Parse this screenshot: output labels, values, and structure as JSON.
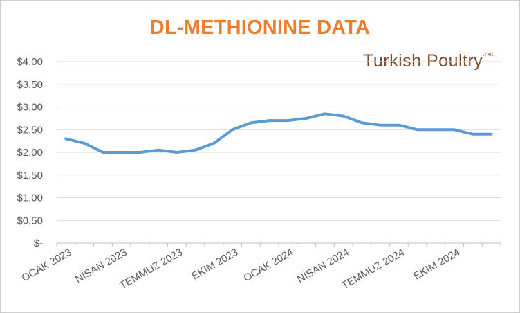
{
  "chart_data": {
    "type": "line",
    "title": "DL-METHIONINE DATA",
    "xlabel": "",
    "ylabel": "",
    "x_tick_labels": [
      "OCAK 2023",
      "NİSAN 2023",
      "TEMMUZ 2023",
      "EKİM 2023",
      "OCAK 2024",
      "NİSAN 2024",
      "TEMMUZ 2024",
      "EKİM 2024"
    ],
    "y_tick_labels": [
      "$-",
      "$0,50",
      "$1,00",
      "$1,50",
      "$2,00",
      "$2,50",
      "$3,00",
      "$3,50",
      "$4,00"
    ],
    "ylim": [
      0,
      4
    ],
    "grid": true,
    "x": [
      "2023-01",
      "2023-02",
      "2023-03",
      "2023-04",
      "2023-05",
      "2023-06",
      "2023-07",
      "2023-08",
      "2023-09",
      "2023-10",
      "2023-11",
      "2023-12",
      "2024-01",
      "2024-02",
      "2024-03",
      "2024-04",
      "2024-05",
      "2024-06",
      "2024-07",
      "2024-08",
      "2024-09",
      "2024-10",
      "2024-11",
      "2024-12"
    ],
    "series": [
      {
        "values": [
          2.3,
          2.2,
          2.0,
          2.0,
          2.0,
          2.05,
          2.0,
          2.05,
          2.2,
          2.5,
          2.65,
          2.7,
          2.7,
          2.75,
          2.85,
          2.8,
          2.65,
          2.6,
          2.6,
          2.5,
          2.5,
          2.5,
          2.4,
          2.4
        ],
        "color": "#5b9bd5"
      }
    ]
  },
  "logo": {
    "text_turkish": "Turkish",
    "text_poultry": "Poultry",
    "text_suffix": ".net"
  },
  "colors": {
    "title": "#ed7d31",
    "line": "#5b9bd5",
    "grid": "#d9d9d9",
    "axis_text": "#595959",
    "logo": "#7a4a2a"
  }
}
